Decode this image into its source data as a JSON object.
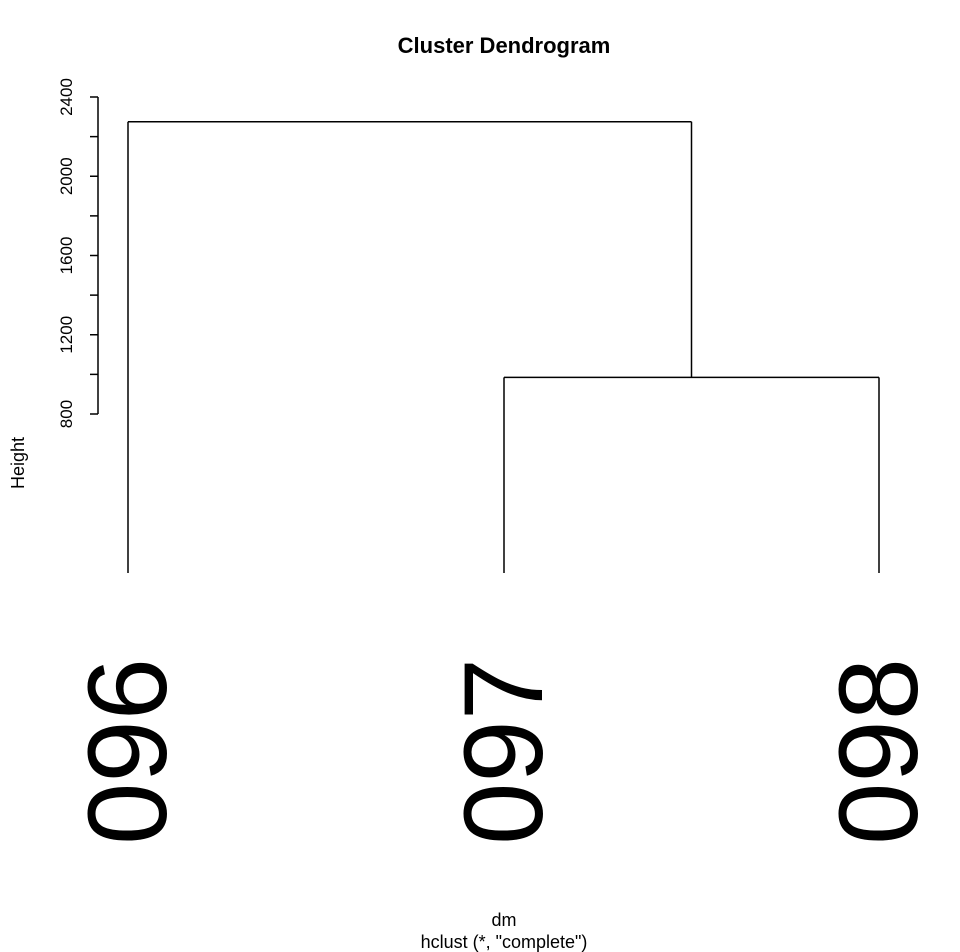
{
  "chart_data": {
    "type": "dendrogram",
    "title": "Cluster Dendrogram",
    "ylabel": "Height",
    "xlabel": "dm",
    "sub": "hclust (*, \"complete\")",
    "yticks": [
      800,
      1200,
      1600,
      2000,
      2400
    ],
    "ylim": [
      800,
      2400
    ],
    "leaves": [
      "096",
      "097",
      "098"
    ],
    "merges": [
      {
        "left": "097",
        "right": "098",
        "height": 985
      },
      {
        "left": "096",
        "right": "cluster-097-098",
        "height": 2275
      }
    ]
  }
}
